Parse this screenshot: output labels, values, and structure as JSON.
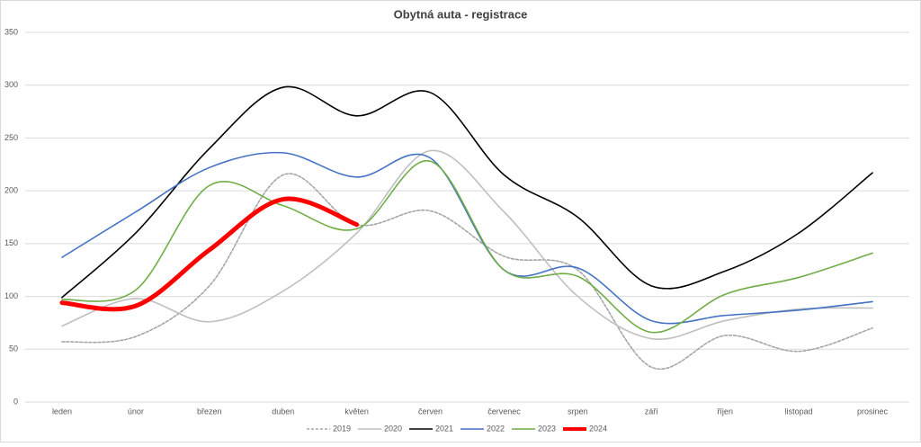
{
  "chart_data": {
    "type": "line",
    "title": "Obytná auta - registrace",
    "categories": [
      "leden",
      "únor",
      "březen",
      "duben",
      "květen",
      "červen",
      "červenec",
      "srpen",
      "září",
      "říjen",
      "listopad",
      "prosinec"
    ],
    "series": [
      {
        "name": "2019",
        "color": "#a6a6a6",
        "dashed": true,
        "values": [
          57,
          62,
          110,
          215,
          168,
          181,
          138,
          125,
          33,
          63,
          48,
          70
        ]
      },
      {
        "name": "2020",
        "color": "#bfbfbf",
        "values": [
          72,
          98,
          76,
          105,
          160,
          238,
          180,
          100,
          60,
          77,
          88,
          89
        ]
      },
      {
        "name": "2021",
        "color": "#000000",
        "values": [
          99,
          160,
          240,
          298,
          271,
          293,
          215,
          175,
          110,
          124,
          160,
          217
        ]
      },
      {
        "name": "2022",
        "color": "#4472c4",
        "values": [
          137,
          180,
          222,
          236,
          213,
          231,
          125,
          127,
          77,
          82,
          87,
          95
        ]
      },
      {
        "name": "2023",
        "color": "#70ad47",
        "values": [
          97,
          106,
          205,
          186,
          164,
          228,
          125,
          119,
          66,
          102,
          118,
          141
        ]
      },
      {
        "name": "2024",
        "color": "#ff0000",
        "thick": true,
        "values": [
          94,
          91,
          144,
          192,
          168,
          null,
          null,
          null,
          null,
          null,
          null,
          null
        ]
      }
    ],
    "ylim": [
      0,
      350
    ],
    "yticks": [
      0,
      50,
      100,
      150,
      200,
      250,
      300,
      350
    ],
    "grid": true,
    "legend": "bottom"
  }
}
